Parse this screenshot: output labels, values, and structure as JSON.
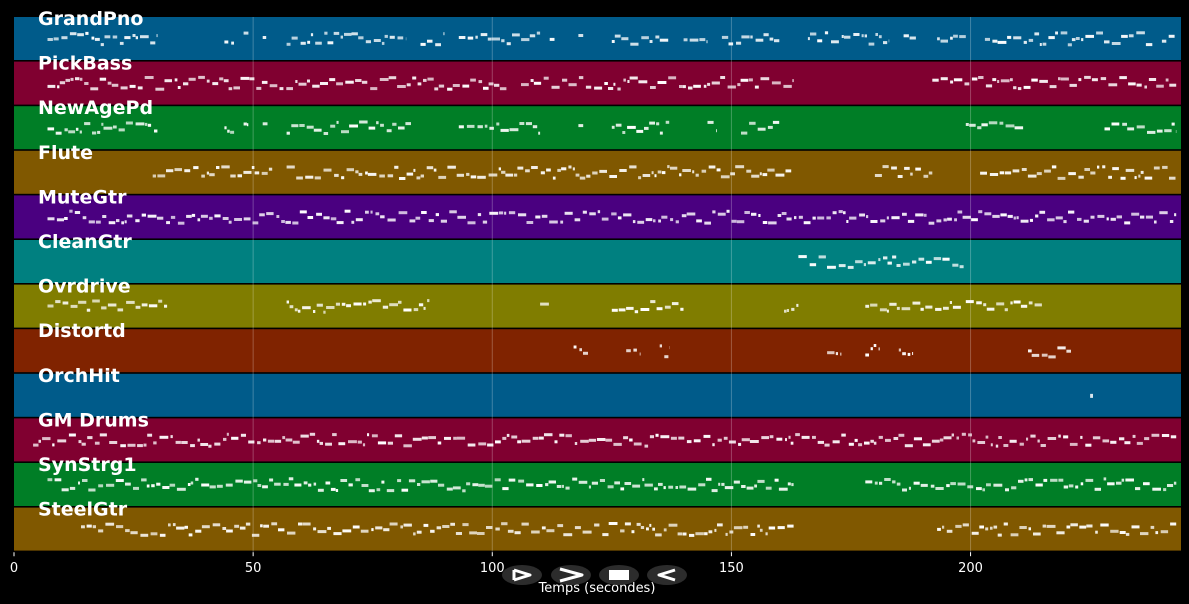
{
  "chart_data": {
    "type": "piano-roll",
    "xlabel": "Temps (secondes)",
    "xlim": [
      0,
      244
    ],
    "xticks": [
      0,
      50,
      100,
      150,
      200
    ],
    "grid": true,
    "tracks": [
      {
        "name": "GrandPno",
        "color": "#005b8a",
        "segments": [
          [
            7,
            30
          ],
          [
            44,
            46
          ],
          [
            48,
            49
          ],
          [
            52,
            53
          ],
          [
            57,
            82
          ],
          [
            85,
            90
          ],
          [
            93,
            110
          ],
          [
            112,
            113
          ],
          [
            118,
            119
          ],
          [
            125,
            137
          ],
          [
            140,
            145
          ],
          [
            148,
            160
          ],
          [
            166,
            183
          ],
          [
            186,
            189
          ],
          [
            193,
            199
          ],
          [
            203,
            238
          ],
          [
            240,
            243
          ]
        ]
      },
      {
        "name": "PickBass",
        "color": "#800030",
        "segments": [
          [
            7,
            103
          ],
          [
            106,
            163
          ],
          [
            192,
            243
          ]
        ]
      },
      {
        "name": "NewAgePd",
        "color": "#007e26",
        "segments": [
          [
            7,
            30
          ],
          [
            44,
            46
          ],
          [
            48,
            49
          ],
          [
            52,
            53
          ],
          [
            57,
            83
          ],
          [
            93,
            110
          ],
          [
            118,
            119
          ],
          [
            125,
            137
          ],
          [
            145,
            147
          ],
          [
            152,
            160
          ],
          [
            199,
            211
          ],
          [
            228,
            243
          ]
        ]
      },
      {
        "name": "Flute",
        "color": "#805800",
        "segments": [
          [
            29,
            54
          ],
          [
            57,
            163
          ],
          [
            180,
            192
          ],
          [
            202,
            243
          ]
        ]
      },
      {
        "name": "MuteGtr",
        "color": "#4a0080",
        "segments": [
          [
            7,
            243
          ]
        ]
      },
      {
        "name": "CleanGtr",
        "color": "#008080",
        "segments": [
          [
            164,
            199
          ]
        ]
      },
      {
        "name": "Ovrdrive",
        "color": "#807d00",
        "segments": [
          [
            7,
            32
          ],
          [
            57,
            87
          ],
          [
            110,
            112
          ],
          [
            125,
            140
          ],
          [
            161,
            164
          ],
          [
            178,
            198
          ],
          [
            199,
            215
          ]
        ]
      },
      {
        "name": "Distortd",
        "color": "#802300",
        "segments": [
          [
            117,
            120
          ],
          [
            128,
            131
          ],
          [
            135,
            137
          ],
          [
            170,
            173
          ],
          [
            178,
            181
          ],
          [
            185,
            188
          ],
          [
            212,
            221
          ]
        ]
      },
      {
        "name": "OrchHit",
        "color": "#005b8a",
        "segments": [
          [
            225,
            225.6
          ]
        ]
      },
      {
        "name": "GM Drums",
        "color": "#800030",
        "segments": [
          [
            4,
            243
          ]
        ]
      },
      {
        "name": "SynStrg1",
        "color": "#007e26",
        "segments": [
          [
            7,
            163
          ],
          [
            178,
            243
          ]
        ]
      },
      {
        "name": "SteelGtr",
        "color": "#805800",
        "segments": [
          [
            14,
            163
          ],
          [
            193,
            243
          ]
        ]
      }
    ]
  },
  "controls": [
    {
      "name": "play-button",
      "icon": "play-icon"
    },
    {
      "name": "fast-forward-button",
      "icon": "fast-forward-icon"
    },
    {
      "name": "stop-button",
      "icon": "stop-icon"
    },
    {
      "name": "rewind-button",
      "icon": "rewind-icon"
    }
  ]
}
